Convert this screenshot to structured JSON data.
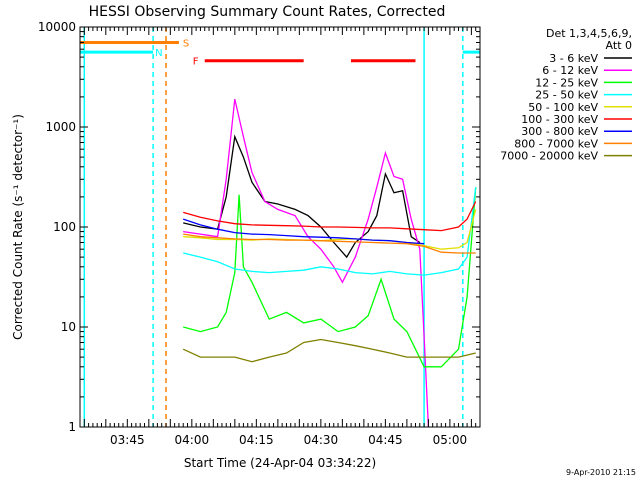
{
  "chart_data": {
    "type": "line",
    "title": "HESSI Observing Summary Count Rates, Corrected",
    "xlabel": "Start Time (24-Apr-04 03:34:22)",
    "ylabel": "Corrected Count Rate (s⁻¹ detector⁻¹)",
    "y_scale": "log",
    "ylim": [
      1,
      10000
    ],
    "xlim": [
      "03:34",
      "05:07"
    ],
    "x_ticks": [
      "03:45",
      "04:00",
      "04:15",
      "04:30",
      "04:45",
      "05:00"
    ],
    "y_ticks": [
      "1",
      "10",
      "100",
      "1000",
      "10000"
    ],
    "footer": "9-Apr-2010 21:15",
    "legend_title": [
      "Det 1,3,4,5,6,9,",
      "Att 0"
    ],
    "legend_position": "right",
    "flag_labels": {
      "saa": "S",
      "night": "N",
      "flare": "F"
    },
    "flags": {
      "saa": {
        "color": "#ff7f00",
        "intervals": [
          [
            "03:34",
            "03:57"
          ]
        ],
        "level": 7000
      },
      "night": {
        "color": "#00ffff",
        "intervals": [
          [
            "03:34",
            "03:51"
          ],
          [
            "05:03",
            "05:07"
          ]
        ],
        "level": 5600
      },
      "flare": {
        "color": "#ff0000",
        "intervals": [
          [
            "04:03",
            "04:26"
          ],
          [
            "04:37",
            "04:52"
          ]
        ],
        "level": 4600
      },
      "vlines": [
        {
          "time": "03:35",
          "color": "#00ffff",
          "style": "solid"
        },
        {
          "time": "03:51",
          "color": "#00ffff",
          "style": "dashed"
        },
        {
          "time": "03:54",
          "color": "#ff7f00",
          "style": "dashed"
        },
        {
          "time": "04:54",
          "color": "#00ffff",
          "style": "solid"
        },
        {
          "time": "05:03",
          "color": "#00ffff",
          "style": "dashed"
        }
      ]
    },
    "series": [
      {
        "name": "3 - 6 keV",
        "color": "#000000",
        "t": [
          "03:58",
          "04:02",
          "04:06",
          "04:08",
          "04:10",
          "04:12",
          "04:14",
          "04:17",
          "04:20",
          "04:24",
          "04:27",
          "04:30",
          "04:33",
          "04:36",
          "04:38",
          "04:41",
          "04:43",
          "04:45",
          "04:47",
          "04:49",
          "04:51",
          "04:53"
        ],
        "v": [
          110,
          100,
          95,
          200,
          800,
          500,
          280,
          180,
          170,
          150,
          130,
          100,
          70,
          50,
          70,
          90,
          130,
          340,
          220,
          230,
          80,
          70
        ]
      },
      {
        "name": "6 - 12 keV",
        "color": "#ff00ff",
        "t": [
          "03:58",
          "04:02",
          "04:06",
          "04:08",
          "04:10",
          "04:12",
          "04:14",
          "04:17",
          "04:20",
          "04:24",
          "04:27",
          "04:30",
          "04:33",
          "04:35",
          "04:38",
          "04:41",
          "04:43",
          "04:45",
          "04:47",
          "04:49",
          "04:51",
          "04:53",
          "04:54",
          "04:55"
        ],
        "v": [
          90,
          85,
          80,
          300,
          1900,
          800,
          350,
          180,
          150,
          130,
          80,
          60,
          40,
          28,
          50,
          120,
          250,
          550,
          320,
          300,
          120,
          60,
          8,
          1
        ]
      },
      {
        "name": "12 - 25 keV",
        "color": "#00ff00",
        "t": [
          "03:58",
          "04:02",
          "04:06",
          "04:08",
          "04:10",
          "04:11",
          "04:12",
          "04:14",
          "04:18",
          "04:22",
          "04:26",
          "04:30",
          "04:34",
          "04:38",
          "04:41",
          "04:44",
          "04:47",
          "04:50",
          "04:54",
          "04:58",
          "05:02",
          "05:04",
          "05:06"
        ],
        "v": [
          10,
          9,
          10,
          14,
          35,
          210,
          40,
          28,
          12,
          14,
          11,
          12,
          9,
          10,
          13,
          30,
          12,
          9,
          4,
          4,
          6,
          20,
          250
        ]
      },
      {
        "name": "25 - 50 keV",
        "color": "#00ffff",
        "t": [
          "03:58",
          "04:02",
          "04:06",
          "04:10",
          "04:14",
          "04:18",
          "04:22",
          "04:26",
          "04:30",
          "04:34",
          "04:38",
          "04:42",
          "04:46",
          "04:50",
          "04:54",
          "04:58",
          "05:02",
          "05:04",
          "05:06"
        ],
        "v": [
          55,
          50,
          45,
          38,
          36,
          35,
          36,
          37,
          40,
          38,
          35,
          34,
          36,
          34,
          33,
          35,
          38,
          50,
          250
        ]
      },
      {
        "name": "50 - 100 keV",
        "color": "#e0e000",
        "t": [
          "03:58",
          "04:02",
          "04:06",
          "04:10",
          "04:14",
          "04:18",
          "04:22",
          "04:26",
          "04:30",
          "04:34",
          "04:38",
          "04:42",
          "04:46",
          "04:50",
          "04:54",
          "04:58",
          "05:02",
          "05:04",
          "05:06"
        ],
        "v": [
          80,
          78,
          75,
          75,
          74,
          76,
          75,
          74,
          73,
          75,
          76,
          74,
          73,
          70,
          65,
          60,
          62,
          70,
          150
        ]
      },
      {
        "name": "100 - 300 keV",
        "color": "#ff0000",
        "t": [
          "03:58",
          "04:02",
          "04:06",
          "04:10",
          "04:14",
          "04:18",
          "04:22",
          "04:26",
          "04:30",
          "04:34",
          "04:38",
          "04:42",
          "04:46",
          "04:50",
          "04:54",
          "04:58",
          "05:02",
          "05:04",
          "05:06"
        ],
        "v": [
          140,
          125,
          115,
          108,
          105,
          104,
          103,
          102,
          100,
          100,
          99,
          98,
          98,
          96,
          94,
          92,
          100,
          120,
          180
        ]
      },
      {
        "name": "300 - 800 keV",
        "color": "#0000ff",
        "t": [
          "03:58",
          "04:02",
          "04:06",
          "04:10",
          "04:14",
          "04:18",
          "04:22",
          "04:26",
          "04:30",
          "04:34",
          "04:38",
          "04:42",
          "04:46",
          "04:50",
          "04:54"
        ],
        "v": [
          120,
          105,
          95,
          88,
          85,
          84,
          82,
          80,
          79,
          78,
          76,
          74,
          73,
          70,
          68
        ]
      },
      {
        "name": "800 - 7000 keV",
        "color": "#ff7f00",
        "t": [
          "03:58",
          "04:02",
          "04:06",
          "04:10",
          "04:14",
          "04:18",
          "04:22",
          "04:26",
          "04:30",
          "04:34",
          "04:38",
          "04:42",
          "04:46",
          "04:50",
          "04:54",
          "04:58",
          "05:02",
          "05:06"
        ],
        "v": [
          85,
          80,
          78,
          76,
          75,
          75,
          74,
          74,
          73,
          72,
          71,
          70,
          69,
          68,
          64,
          56,
          55,
          55
        ]
      },
      {
        "name": "7000 - 20000 keV",
        "color": "#808000",
        "t": [
          "03:58",
          "04:02",
          "04:06",
          "04:10",
          "04:14",
          "04:18",
          "04:22",
          "04:26",
          "04:30",
          "04:34",
          "04:38",
          "04:42",
          "04:46",
          "04:50",
          "04:54",
          "04:58",
          "05:02",
          "05:06"
        ],
        "v": [
          6,
          5,
          5,
          5,
          4.5,
          5,
          5.5,
          7,
          7.5,
          7,
          6.5,
          6,
          5.5,
          5,
          5,
          5,
          5,
          5.5
        ]
      }
    ]
  }
}
